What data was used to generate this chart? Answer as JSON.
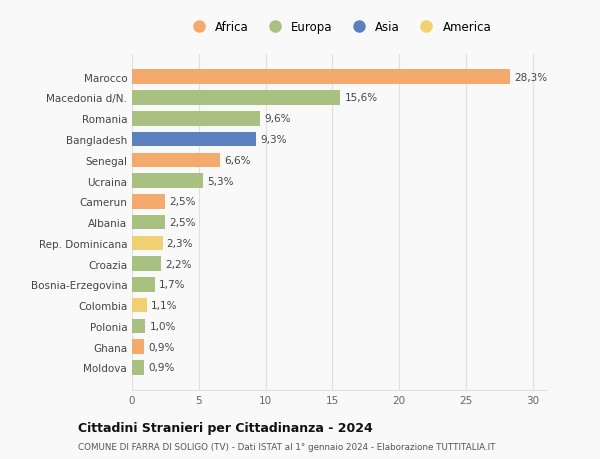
{
  "categories": [
    "Marocco",
    "Macedonia d/N.",
    "Romania",
    "Bangladesh",
    "Senegal",
    "Ucraina",
    "Camerun",
    "Albania",
    "Rep. Dominicana",
    "Croazia",
    "Bosnia-Erzegovina",
    "Colombia",
    "Polonia",
    "Ghana",
    "Moldova"
  ],
  "values": [
    28.3,
    15.6,
    9.6,
    9.3,
    6.6,
    5.3,
    2.5,
    2.5,
    2.3,
    2.2,
    1.7,
    1.1,
    1.0,
    0.9,
    0.9
  ],
  "labels": [
    "28,3%",
    "15,6%",
    "9,6%",
    "9,3%",
    "6,6%",
    "5,3%",
    "2,5%",
    "2,5%",
    "2,3%",
    "2,2%",
    "1,7%",
    "1,1%",
    "1,0%",
    "0,9%",
    "0,9%"
  ],
  "continents": [
    "Africa",
    "Europa",
    "Europa",
    "Asia",
    "Africa",
    "Europa",
    "Africa",
    "Europa",
    "America",
    "Europa",
    "Europa",
    "America",
    "Europa",
    "Africa",
    "Europa"
  ],
  "colors": {
    "Africa": "#F4A96D",
    "Europa": "#A8C080",
    "Asia": "#5B7FBF",
    "America": "#F0D070"
  },
  "legend_order": [
    "Africa",
    "Europa",
    "Asia",
    "America"
  ],
  "xlim": [
    0,
    31
  ],
  "xticks": [
    0,
    5,
    10,
    15,
    20,
    25,
    30
  ],
  "title": "Cittadini Stranieri per Cittadinanza - 2024",
  "subtitle": "COMUNE DI FARRA DI SOLIGO (TV) - Dati ISTAT al 1° gennaio 2024 - Elaborazione TUTTITALIA.IT",
  "background_color": "#f9f9f9",
  "grid_color": "#e0e0e0"
}
